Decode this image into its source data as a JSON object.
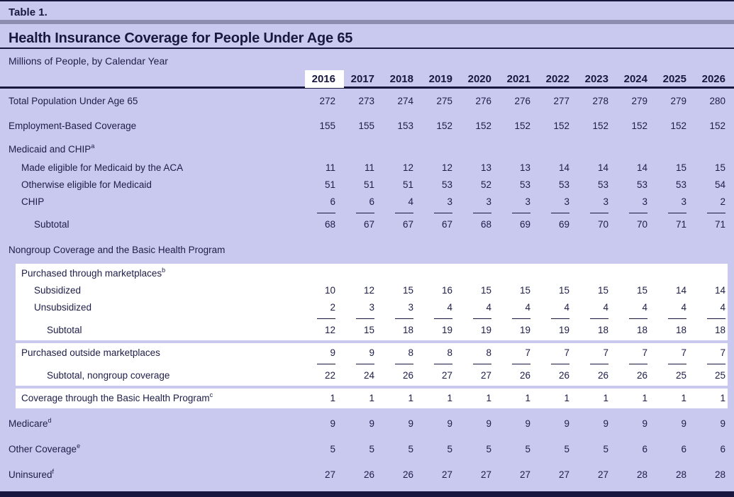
{
  "header": {
    "table_label": "Table 1.",
    "title": "Health Insurance Coverage for People Under Age 65",
    "subtitle": "Millions of People, by Calendar Year"
  },
  "colors": {
    "background": "#c9c9f0",
    "navy": "#17173f",
    "text": "#1d1d48",
    "gray_bar": "#8d8db0",
    "highlight": "#ffffff"
  },
  "table": {
    "years": [
      "2016",
      "2017",
      "2018",
      "2019",
      "2020",
      "2021",
      "2022",
      "2023",
      "2024",
      "2025",
      "2026"
    ],
    "highlight_year": "2016",
    "sections": [
      {
        "white": false,
        "rows": [
          {
            "id": "total-population",
            "label": "Total Population Under Age 65",
            "indent": 0,
            "underline": false,
            "values": [
              "272",
              "273",
              "274",
              "275",
              "276",
              "276",
              "277",
              "278",
              "279",
              "279",
              "280"
            ]
          },
          {
            "id": "employment-based",
            "label": "Employment-Based Coverage",
            "indent": 0,
            "underline": false,
            "values": [
              "155",
              "155",
              "153",
              "152",
              "152",
              "152",
              "152",
              "152",
              "152",
              "152",
              "152"
            ]
          },
          {
            "id": "medicaid-chip-header",
            "label": "Medicaid and CHIP",
            "sup": "a",
            "indent": 0,
            "underline": false,
            "values": null
          },
          {
            "id": "medicaid-aca",
            "label": "Made eligible for Medicaid by the ACA",
            "indent": 1,
            "underline": false,
            "values": [
              "11",
              "11",
              "12",
              "12",
              "13",
              "13",
              "14",
              "14",
              "14",
              "15",
              "15"
            ]
          },
          {
            "id": "medicaid-otherwise",
            "label": "Otherwise eligible for Medicaid",
            "indent": 1,
            "underline": false,
            "values": [
              "51",
              "51",
              "51",
              "53",
              "52",
              "53",
              "53",
              "53",
              "53",
              "53",
              "54"
            ]
          },
          {
            "id": "chip",
            "label": "CHIP",
            "indent": 1,
            "underline": true,
            "values": [
              "6",
              "6",
              "4",
              "3",
              "3",
              "3",
              "3",
              "3",
              "3",
              "3",
              "2"
            ]
          },
          {
            "id": "medicaid-subtotal",
            "label": "Subtotal",
            "indent": 2,
            "underline": false,
            "values": [
              "68",
              "67",
              "67",
              "67",
              "68",
              "69",
              "69",
              "70",
              "70",
              "71",
              "71"
            ]
          },
          {
            "id": "nongroup-header",
            "label": "Nongroup Coverage and the Basic Health Program",
            "indent": 0,
            "underline": false,
            "values": null
          }
        ]
      },
      {
        "white": true,
        "rows": [
          {
            "id": "purchased-marketplaces-header",
            "label": "Purchased through marketplaces",
            "sup": "b",
            "indent": 1,
            "underline": false,
            "values": null
          },
          {
            "id": "subsidized",
            "label": "Subsidized",
            "indent": 2,
            "underline": false,
            "values": [
              "10",
              "12",
              "15",
              "16",
              "15",
              "15",
              "15",
              "15",
              "15",
              "14",
              "14"
            ]
          },
          {
            "id": "unsubsidized",
            "label": "Unsubsidized",
            "indent": 2,
            "underline": true,
            "values": [
              "2",
              "3",
              "3",
              "4",
              "4",
              "4",
              "4",
              "4",
              "4",
              "4",
              "4"
            ]
          },
          {
            "id": "marketplaces-subtotal",
            "label": "Subtotal",
            "indent": 3,
            "underline": false,
            "values": [
              "12",
              "15",
              "18",
              "19",
              "19",
              "19",
              "19",
              "18",
              "18",
              "18",
              "18"
            ]
          }
        ]
      },
      {
        "white": true,
        "rows": [
          {
            "id": "purchased-outside",
            "label": "Purchased outside marketplaces",
            "indent": 1,
            "underline": true,
            "values": [
              "9",
              "9",
              "8",
              "8",
              "8",
              "7",
              "7",
              "7",
              "7",
              "7",
              "7"
            ]
          },
          {
            "id": "nongroup-subtotal",
            "label": "Subtotal, nongroup coverage",
            "indent": 3,
            "underline": false,
            "values": [
              "22",
              "24",
              "26",
              "27",
              "27",
              "26",
              "26",
              "26",
              "26",
              "25",
              "25"
            ]
          }
        ]
      },
      {
        "white": true,
        "rows": [
          {
            "id": "basic-health-program",
            "label": "Coverage through the Basic Health Program",
            "sup": "c",
            "indent": 1,
            "underline": false,
            "values": [
              "1",
              "1",
              "1",
              "1",
              "1",
              "1",
              "1",
              "1",
              "1",
              "1",
              "1"
            ]
          }
        ]
      },
      {
        "white": false,
        "rows": [
          {
            "id": "medicare",
            "label": "Medicare",
            "sup": "d",
            "indent": 0,
            "underline": false,
            "values": [
              "9",
              "9",
              "9",
              "9",
              "9",
              "9",
              "9",
              "9",
              "9",
              "9",
              "9"
            ]
          },
          {
            "id": "other-coverage",
            "label": "Other Coverage",
            "sup": "e",
            "indent": 0,
            "underline": false,
            "values": [
              "5",
              "5",
              "5",
              "5",
              "5",
              "5",
              "5",
              "5",
              "6",
              "6",
              "6"
            ]
          },
          {
            "id": "uninsured",
            "label": "Uninsured",
            "sup": "f",
            "indent": 0,
            "underline": false,
            "values": [
              "27",
              "26",
              "26",
              "27",
              "27",
              "27",
              "27",
              "27",
              "28",
              "28",
              "28"
            ]
          }
        ]
      }
    ]
  }
}
